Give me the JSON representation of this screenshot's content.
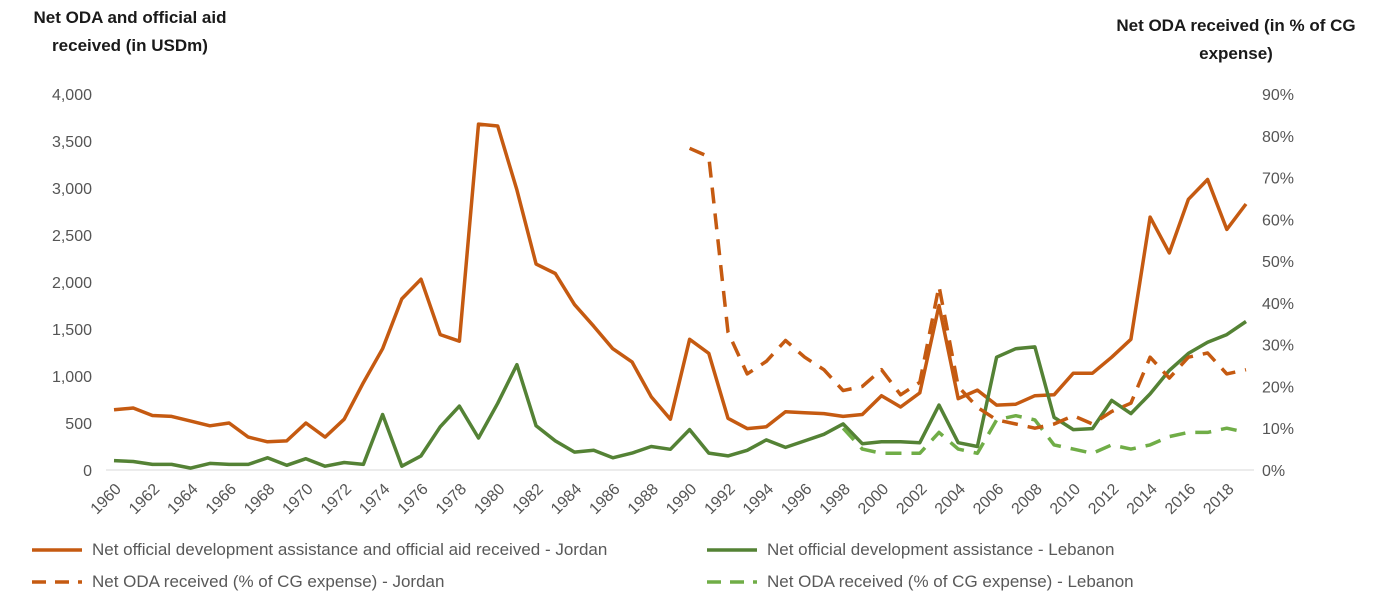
{
  "chart_data": {
    "type": "line",
    "y_left_label_lines": [
      "Net ODA and official aid",
      "received (in USDm)"
    ],
    "y_right_label_lines": [
      "Net ODA received (in % of CG",
      "expense)"
    ],
    "y_left_ticks": [
      "0",
      "500",
      "1,000",
      "1,500",
      "2,000",
      "2,500",
      "3,000",
      "3,500",
      "4,000"
    ],
    "y_right_ticks": [
      "0%",
      "10%",
      "20%",
      "30%",
      "40%",
      "50%",
      "60%",
      "70%",
      "80%",
      "90%"
    ],
    "ylim_left": [
      0,
      4000
    ],
    "ylim_right": [
      0,
      90
    ],
    "x_tick_labels": [
      "1960",
      "1962",
      "1964",
      "1966",
      "1968",
      "1970",
      "1972",
      "1974",
      "1976",
      "1978",
      "1980",
      "1982",
      "1984",
      "1986",
      "1988",
      "1990",
      "1992",
      "1994",
      "1996",
      "1998",
      "2000",
      "2002",
      "2004",
      "2006",
      "2008",
      "2010",
      "2012",
      "2014",
      "2016",
      "2018"
    ],
    "x_start": 1960,
    "x_end": 2019,
    "legend_position": "bottom",
    "grid": false,
    "series": [
      {
        "name": "Net official development assistance and official aid received - Jordan",
        "axis": "left",
        "color": "#C55A11",
        "dash": "solid",
        "x": [
          1960,
          1961,
          1962,
          1963,
          1964,
          1965,
          1966,
          1967,
          1968,
          1969,
          1970,
          1971,
          1972,
          1973,
          1974,
          1975,
          1976,
          1977,
          1978,
          1979,
          1980,
          1981,
          1982,
          1983,
          1984,
          1985,
          1986,
          1987,
          1988,
          1989,
          1990,
          1991,
          1992,
          1993,
          1994,
          1995,
          1996,
          1997,
          1998,
          1999,
          2000,
          2001,
          2002,
          2003,
          2004,
          2005,
          2006,
          2007,
          2008,
          2009,
          2010,
          2011,
          2012,
          2013,
          2014,
          2015,
          2016,
          2017,
          2018,
          2019
        ],
        "values": [
          640,
          660,
          580,
          570,
          520,
          470,
          500,
          350,
          300,
          310,
          500,
          350,
          540,
          930,
          1290,
          1820,
          2030,
          1440,
          1370,
          3680,
          3660,
          2980,
          2190,
          2090,
          1760,
          1530,
          1290,
          1150,
          780,
          540,
          1390,
          1240,
          550,
          440,
          460,
          620,
          610,
          600,
          570,
          590,
          790,
          670,
          820,
          1750,
          760,
          850,
          690,
          700,
          790,
          800,
          1030,
          1030,
          1200,
          1390,
          2690,
          2310,
          2880,
          3090,
          2560,
          2830
        ]
      },
      {
        "name": "Net official development assistance - Lebanon",
        "axis": "left",
        "color": "#548235",
        "dash": "solid",
        "x": [
          1960,
          1961,
          1962,
          1963,
          1964,
          1965,
          1966,
          1967,
          1968,
          1969,
          1970,
          1971,
          1972,
          1973,
          1974,
          1975,
          1976,
          1977,
          1978,
          1979,
          1980,
          1981,
          1982,
          1983,
          1984,
          1985,
          1986,
          1987,
          1988,
          1989,
          1990,
          1991,
          1992,
          1993,
          1994,
          1995,
          1996,
          1997,
          1998,
          1999,
          2000,
          2001,
          2002,
          2003,
          2004,
          2005,
          2006,
          2007,
          2008,
          2009,
          2010,
          2011,
          2012,
          2013,
          2014,
          2015,
          2016,
          2017,
          2018,
          2019
        ],
        "values": [
          100,
          90,
          60,
          60,
          20,
          70,
          60,
          60,
          130,
          50,
          120,
          40,
          80,
          60,
          590,
          40,
          150,
          460,
          680,
          340,
          710,
          1120,
          470,
          310,
          190,
          210,
          130,
          180,
          250,
          220,
          430,
          180,
          150,
          210,
          320,
          240,
          310,
          380,
          490,
          280,
          300,
          300,
          290,
          690,
          290,
          250,
          1200,
          1290,
          1310,
          560,
          430,
          440,
          740,
          600,
          810,
          1060,
          1240,
          1360,
          1440,
          1580
        ]
      },
      {
        "name": "Net ODA received (% of CG expense) - Jordan",
        "axis": "right",
        "color": "#C55A11",
        "dash": "dashed",
        "x": [
          1990,
          1991,
          1992,
          1993,
          1994,
          1995,
          1996,
          1997,
          1998,
          1999,
          2000,
          2001,
          2002,
          2003,
          2004,
          2005,
          2006,
          2007,
          2008,
          2009,
          2010,
          2011,
          2012,
          2013,
          2014,
          2015,
          2016,
          2017,
          2018,
          2019
        ],
        "values": [
          77,
          75,
          33,
          23,
          26,
          31,
          27,
          24,
          19,
          20,
          24,
          18,
          21,
          44,
          20,
          15,
          12,
          11,
          10,
          11,
          13,
          11,
          14,
          16,
          27,
          22,
          27,
          28,
          23,
          24
        ]
      },
      {
        "name": "Net ODA received (% of CG expense) - Lebanon",
        "axis": "right",
        "color": "#70AD47",
        "dash": "dashed",
        "x": [
          1998,
          1999,
          2000,
          2001,
          2002,
          2003,
          2004,
          2005,
          2006,
          2007,
          2008,
          2009,
          2010,
          2011,
          2012,
          2013,
          2014,
          2015,
          2016,
          2017,
          2018,
          2019
        ],
        "values": [
          10,
          5,
          4,
          4,
          4,
          9,
          5,
          4,
          12,
          13,
          12,
          6,
          5,
          4,
          6,
          5,
          6,
          8,
          9,
          9,
          10,
          9
        ]
      }
    ]
  }
}
